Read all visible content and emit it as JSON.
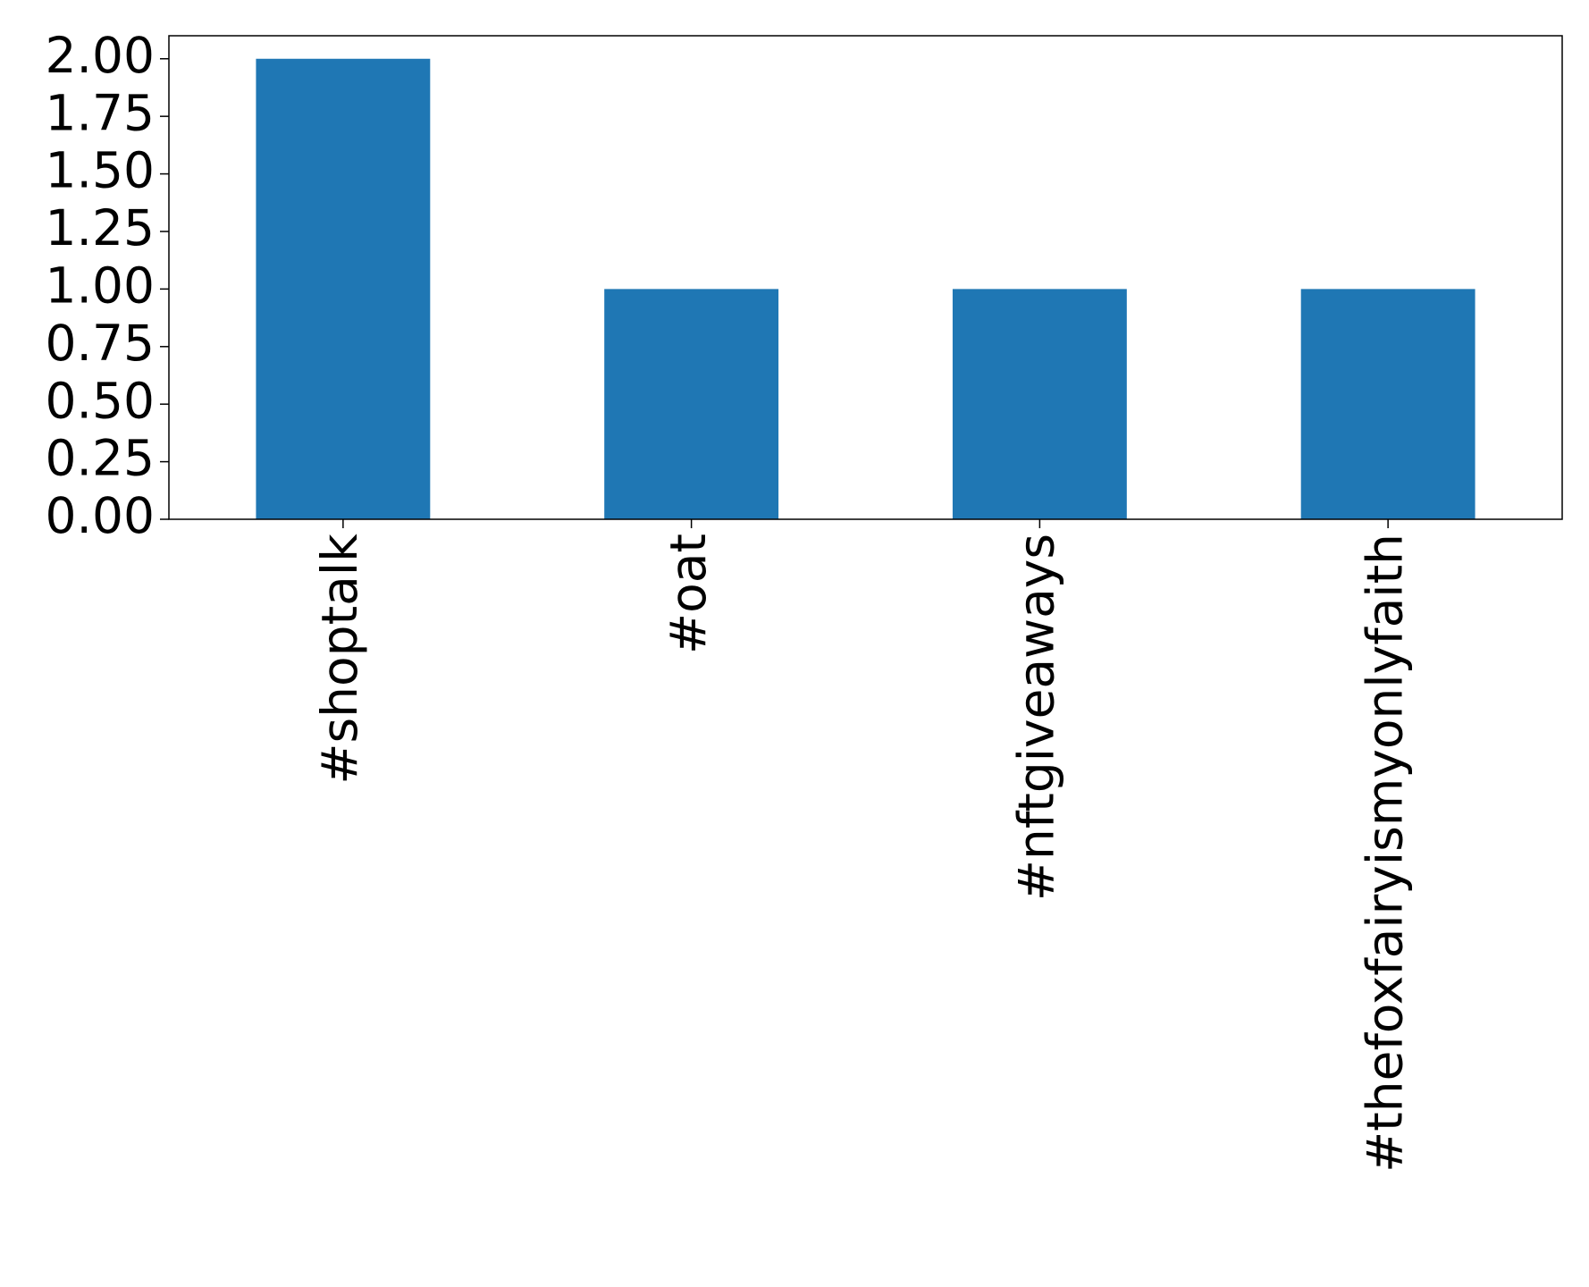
{
  "chart_data": {
    "type": "bar",
    "categories": [
      "#shoptalk",
      "#oat",
      "#nftgiveaways",
      "#thefoxfairyismyonlyfaith"
    ],
    "values": [
      2,
      1,
      1,
      1
    ],
    "color": "#1f77b4",
    "ylim": [
      0,
      2.1
    ],
    "yticks": [
      {
        "value": 0,
        "label": "0.00"
      },
      0.25,
      {
        "value": 0.5,
        "label": "0.50"
      },
      0.75,
      {
        "value": 1,
        "label": "1.00"
      },
      1.25,
      {
        "value": 1.5,
        "label": "1.50"
      },
      1.75,
      {
        "value": 2,
        "label": "2.00"
      }
    ],
    "grid": false
  }
}
